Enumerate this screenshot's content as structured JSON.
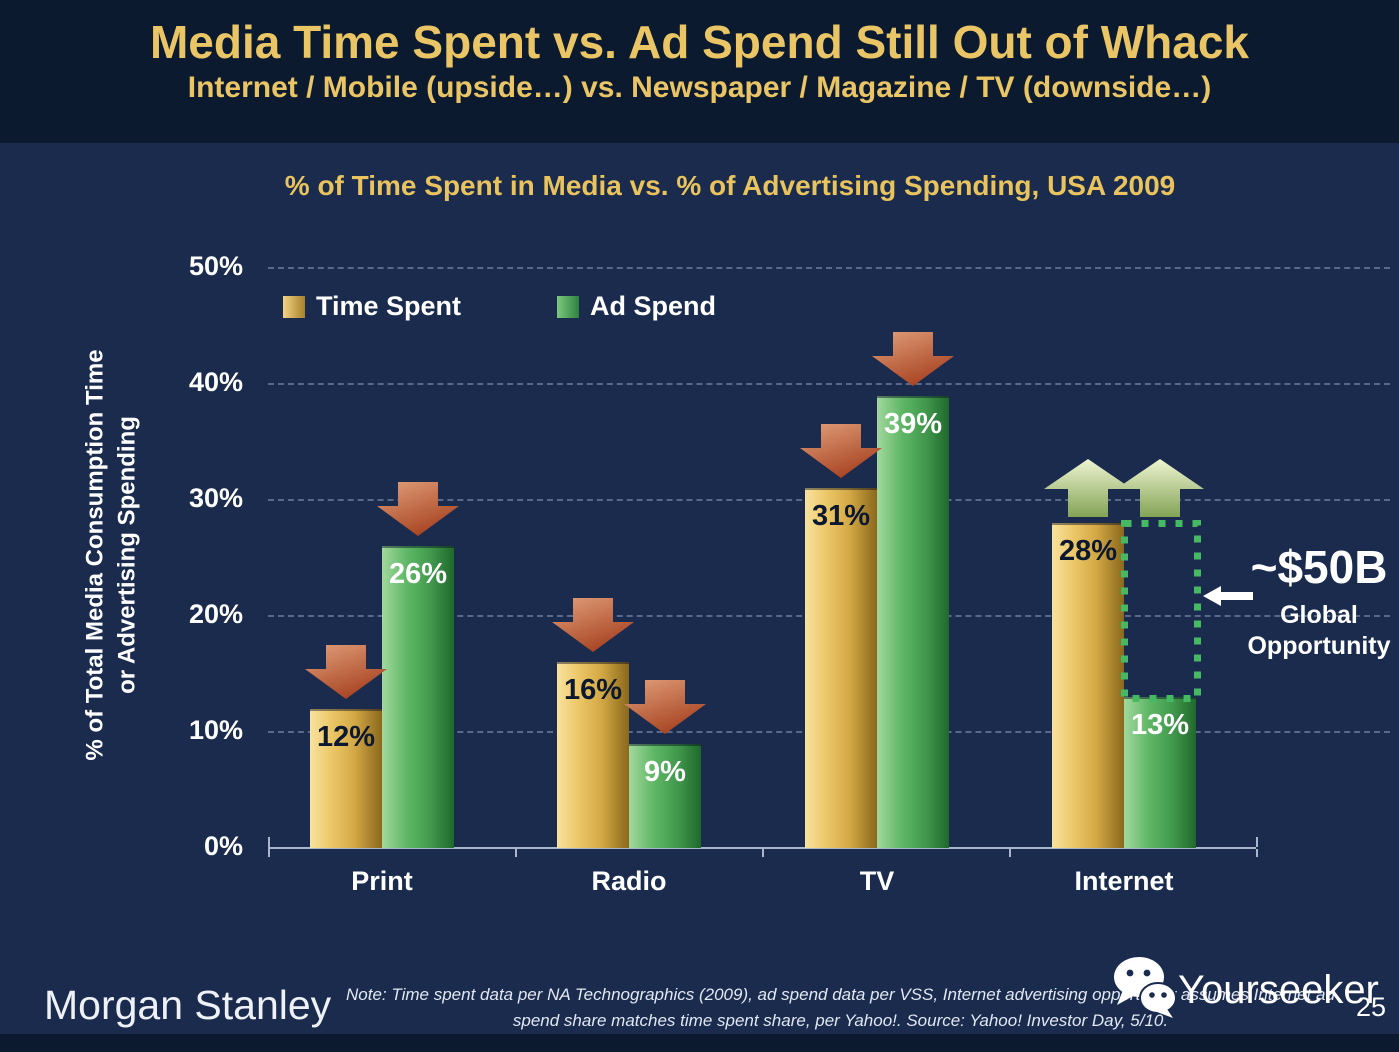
{
  "slide": {
    "title": "Media Time Spent vs. Ad Spend Still Out of Whack",
    "subtitle": "Internet / Mobile (upside…) vs. Newspaper / Magazine / TV (downside…)",
    "colors": {
      "background": "#1a2b4e",
      "header_background": "#0b1a2f",
      "title_gold": "#eac565",
      "down_arrow": "#b0492a",
      "up_arrow": "#a9c475",
      "highlight_green": "#46ba62"
    }
  },
  "chart_data": {
    "type": "bar",
    "title": "% of Time Spent in Media vs. % of Advertising Spending, USA 2009",
    "ylabel": "% of Total Media Consumption Time or Advertising Spending",
    "ylabel_lines": [
      "% of Total Media Consumption Time",
      "or Advertising Spending"
    ],
    "categories": [
      "Print",
      "Radio",
      "TV",
      "Internet"
    ],
    "series": [
      {
        "name": "Time Spent",
        "values": [
          12,
          16,
          31,
          28
        ],
        "color": "#e2bc5e",
        "swatch": [
          "#f2d486",
          "#a8802a"
        ]
      },
      {
        "name": "Ad Spend",
        "values": [
          26,
          9,
          39,
          13
        ],
        "color": "#4ca856",
        "swatch": [
          "#7cc97e",
          "#2f8040"
        ]
      }
    ],
    "value_labels": [
      [
        "12%",
        "26%"
      ],
      [
        "16%",
        "9%"
      ],
      [
        "31%",
        "39%"
      ],
      [
        "28%",
        "13%"
      ]
    ],
    "yticks": [
      "0%",
      "10%",
      "20%",
      "30%",
      "40%",
      "50%"
    ],
    "ylim": [
      0,
      50
    ],
    "grid": "horizontal dashed",
    "legend_position": "top-left inside plot",
    "trend_arrows": [
      {
        "category": "Print",
        "series": 0,
        "direction": "down"
      },
      {
        "category": "Print",
        "series": 1,
        "direction": "down"
      },
      {
        "category": "Radio",
        "series": 0,
        "direction": "down"
      },
      {
        "category": "Radio",
        "series": 1,
        "direction": "down"
      },
      {
        "category": "TV",
        "series": 0,
        "direction": "down"
      },
      {
        "category": "TV",
        "series": 1,
        "direction": "down"
      },
      {
        "category": "Internet",
        "series": 0,
        "direction": "up"
      },
      {
        "category": "Internet",
        "series": 1,
        "direction": "up"
      }
    ],
    "annotation": {
      "value": "~$50B",
      "label_line1": "Global",
      "label_line2": "Opportunity",
      "highlight": "dotted box on Internet gap between 13% ad spend and 28% time spent"
    }
  },
  "footer": {
    "brand": "Morgan Stanley",
    "note_line1": "Note: Time spent data per NA Technographics (2009), ad spend data per VSS, Internet advertising opportunity assumes Internet ad",
    "note_line2": "spend share matches time spent share, per Yahoo!. Source: Yahoo! Investor Day, 5/10.",
    "watermark": "Yourseeker",
    "page_number": "25"
  }
}
